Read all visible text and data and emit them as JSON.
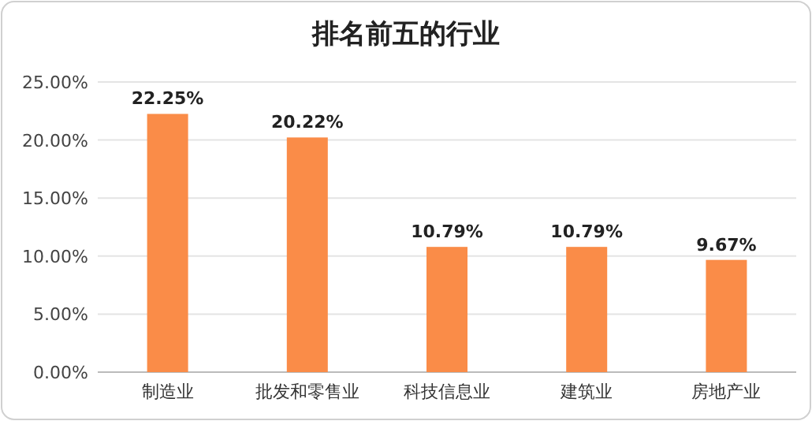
{
  "chart_data": {
    "type": "bar",
    "title": "排名前五的行业",
    "categories": [
      "制造业",
      "批发和零售业",
      "科技信息业",
      "建筑业",
      "房地产业"
    ],
    "values": [
      22.25,
      20.22,
      10.79,
      10.79,
      9.67
    ],
    "value_labels": [
      "22.25%",
      "20.22%",
      "10.79%",
      "10.79%",
      "9.67%"
    ],
    "color": "#fa8c48",
    "ylim": [
      0,
      25
    ],
    "yticks": [
      {
        "value": 0,
        "label": "0.00%"
      },
      {
        "value": 5,
        "label": "5.00%"
      },
      {
        "value": 10,
        "label": "10.00%"
      },
      {
        "value": 15,
        "label": "15.00%"
      },
      {
        "value": 20,
        "label": "20.00%"
      },
      {
        "value": 25,
        "label": "25.00%"
      }
    ],
    "grid": "y"
  }
}
